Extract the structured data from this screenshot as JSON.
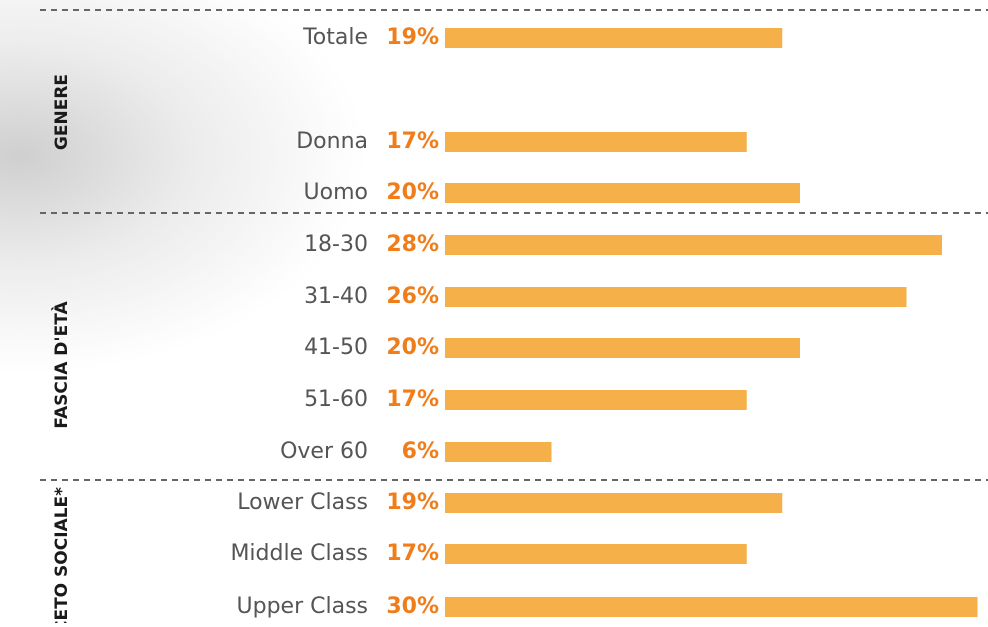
{
  "chart_data": [
    {
      "type": "bar",
      "title": "GENERE",
      "color": "#f6b04a",
      "label_color": "#f07d1a",
      "categories": [
        "Totale",
        "Donna",
        "Uomo"
      ],
      "values": [
        19,
        17,
        20
      ],
      "value_labels": [
        "19%",
        "17%",
        "20%"
      ]
    },
    {
      "type": "bar",
      "title": "FASCIA D'ETÀ",
      "color": "#f6b04a",
      "label_color": "#f07d1a",
      "categories": [
        "18-30",
        "31-40",
        "41-50",
        "51-60",
        "Over 60"
      ],
      "values": [
        28,
        26,
        20,
        17,
        6
      ],
      "value_labels": [
        "28%",
        "26%",
        "20%",
        "17%",
        "6%"
      ]
    },
    {
      "type": "bar",
      "title": "CETO SOCIALE*",
      "color": "#f6b04a",
      "label_color": "#f07d1a",
      "categories": [
        "Lower Class",
        "Middle Class",
        "Upper Class"
      ],
      "values": [
        19,
        17,
        30
      ],
      "value_labels": [
        "19%",
        "17%",
        "30%"
      ]
    }
  ]
}
